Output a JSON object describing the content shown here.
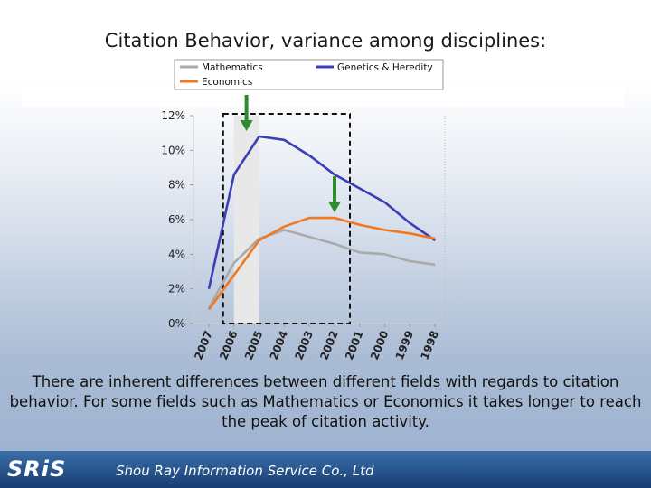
{
  "slide": {
    "title": "Citation Behavior, variance among disciplines:",
    "caption": "There are inherent differences between different fields with regards to citation behavior. For some fields such as Mathematics or Economics it takes longer to reach the peak of citation activity."
  },
  "footer": {
    "logo_text": "SRiS",
    "company": "Shou Ray Information Service Co., Ltd"
  },
  "chart_data": {
    "type": "line",
    "title": "",
    "xlabel": "",
    "ylabel": "",
    "categories": [
      "2007",
      "2006",
      "2005",
      "2004",
      "2003",
      "2002",
      "2001",
      "2000",
      "1999",
      "1998"
    ],
    "ylim": [
      0,
      12
    ],
    "yticks": [
      0,
      2,
      4,
      6,
      8,
      10,
      12
    ],
    "ytick_labels": [
      "0%",
      "2%",
      "4%",
      "6%",
      "8%",
      "10%",
      "12%"
    ],
    "grid": false,
    "legend_position": "top",
    "series": [
      {
        "name": "Mathematics",
        "color": "#aaaaaa",
        "values": [
          0.9,
          3.5,
          4.9,
          5.4,
          5.0,
          4.6,
          4.1,
          4.0,
          3.6,
          3.4
        ]
      },
      {
        "name": "Genetics & Heredity",
        "color": "#3a3fb5",
        "values": [
          2.0,
          8.6,
          10.8,
          10.6,
          9.7,
          8.6,
          7.8,
          7.0,
          5.8,
          4.8
        ]
      },
      {
        "name": "Economics",
        "color": "#f07820",
        "values": [
          0.8,
          2.8,
          4.8,
          5.6,
          6.1,
          6.1,
          5.7,
          5.4,
          5.2,
          4.9
        ]
      }
    ],
    "annotations": {
      "shaded_category": "2005",
      "dashed_box_categories": [
        "2006",
        "2002"
      ],
      "arrow_markers": [
        {
          "category": "2005",
          "series": "Genetics & Heredity",
          "color": "#2e8b2e"
        },
        {
          "category": "2002",
          "series": "Economics",
          "color": "#2e8b2e"
        }
      ]
    }
  }
}
